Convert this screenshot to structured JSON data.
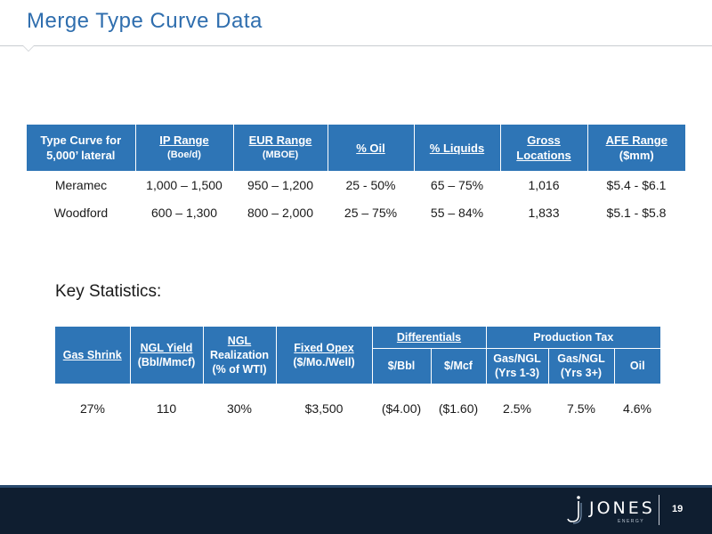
{
  "title": "Merge Type Curve Data",
  "type_curve_table": {
    "headers": [
      {
        "line1": "Type Curve for",
        "line2": "5,000’ lateral",
        "underline": false
      },
      {
        "line1": "IP Range",
        "line2": "(Boe/d)",
        "underline": true
      },
      {
        "line1": "EUR Range",
        "line2": "(MBOE)",
        "underline": true
      },
      {
        "line1": "% Oil",
        "line2": "",
        "underline": true
      },
      {
        "line1": "% Liquids",
        "line2": "",
        "underline": true
      },
      {
        "line1": "Gross",
        "line2": "Locations",
        "underline": true
      },
      {
        "line1": "AFE Range",
        "line2": "($mm)",
        "underline": true
      }
    ],
    "rows": [
      [
        "Meramec",
        "1,000 – 1,500",
        "950 – 1,200",
        "25 - 50%",
        "65 – 75%",
        "1,016",
        "$5.4 - $6.1"
      ],
      [
        "Woodford",
        "600 – 1,300",
        "800 – 2,000",
        "25 – 75%",
        "55 – 84%",
        "1,833",
        "$5.1 - $5.8"
      ]
    ]
  },
  "key_statistics_label": "Key Statistics:",
  "key_statistics_table": {
    "gas_shrink": "Gas Shrink",
    "ngl_yield": {
      "line1": "NGL Yield",
      "line2": "(Bbl/Mmcf)"
    },
    "ngl_realization": {
      "line1": "NGL",
      "line2": "Realization",
      "line3": "(% of WTI)"
    },
    "fixed_opex": {
      "line1": "Fixed Opex",
      "line2": "($/Mo./Well)"
    },
    "differentials": {
      "label": "Differentials",
      "bbl": "$/Bbl",
      "mcf": "$/Mcf"
    },
    "production_tax": {
      "label": "Production Tax",
      "gas_ngl_1_3": {
        "line1": "Gas/NGL",
        "line2": "(Yrs 1-3)"
      },
      "gas_ngl_3p": {
        "line1": "Gas/NGL",
        "line2": "(Yrs 3+)"
      },
      "oil": "Oil"
    },
    "values": [
      "27%",
      "110",
      "30%",
      "$3,500",
      "($4.00)",
      "($1.60)",
      "2.5%",
      "7.5%",
      "4.6%"
    ]
  },
  "footer": {
    "logo_text": "JONES",
    "logo_sub": "ENERGY",
    "page_number": "19"
  },
  "colors": {
    "title": "#2f6eae",
    "table_header": "#2e75b6",
    "footer_bg": "#0f1e30"
  }
}
